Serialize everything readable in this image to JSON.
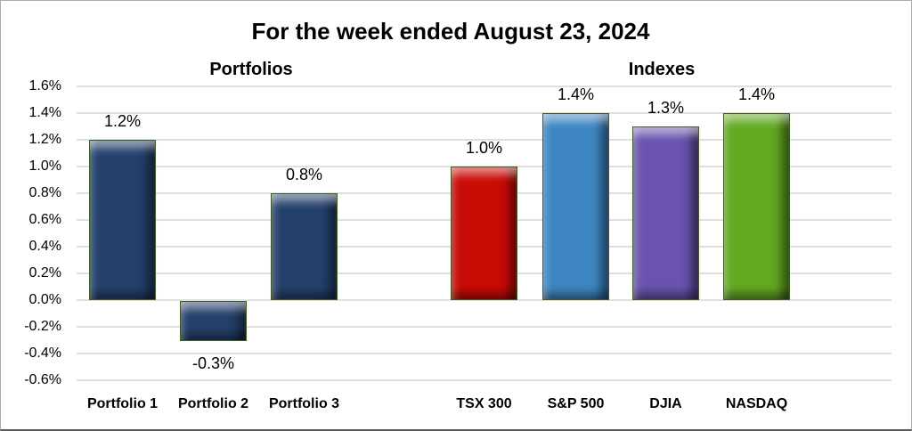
{
  "chart_data": {
    "type": "bar",
    "title": "For the week ended August 23, 2024",
    "groups": [
      {
        "label": "Portfolios"
      },
      {
        "label": "Indexes"
      }
    ],
    "y_axis": {
      "ticks": [
        "1.6%",
        "1.4%",
        "1.2%",
        "1.0%",
        "0.8%",
        "0.6%",
        "0.4%",
        "0.2%",
        "0.0%",
        "-0.2%",
        "-0.4%",
        "-0.6%"
      ],
      "min": -0.6,
      "max": 1.6,
      "step": 0.2,
      "unit": "%",
      "grid": true
    },
    "bars": [
      {
        "group": "Portfolios",
        "category": "Portfolio 1",
        "value": 1.2,
        "label": "1.2%",
        "color": "navy"
      },
      {
        "group": "Portfolios",
        "category": "Portfolio 2",
        "value": -0.3,
        "label": "-0.3%",
        "color": "navy"
      },
      {
        "group": "Portfolios",
        "category": "Portfolio 3",
        "value": 0.8,
        "label": "0.8%",
        "color": "navy"
      },
      {
        "group": "Indexes",
        "category": "TSX 300",
        "value": 1.0,
        "label": "1.0%",
        "color": "red"
      },
      {
        "group": "Indexes",
        "category": "S&P 500",
        "value": 1.4,
        "label": "1.4%",
        "color": "blue"
      },
      {
        "group": "Indexes",
        "category": "DJIA",
        "value": 1.3,
        "label": "1.3%",
        "color": "purple"
      },
      {
        "group": "Indexes",
        "category": "NASDAQ",
        "value": 1.4,
        "label": "1.4%",
        "color": "green"
      }
    ],
    "legend": "none",
    "colors": {
      "navy": "#24406B",
      "red": "#C90B06",
      "blue": "#3E86C2",
      "purple": "#6A53AE",
      "green": "#62A821",
      "bar_outline": "#3E5C22",
      "gridline": "#DFDFDF",
      "text": "#000000"
    }
  }
}
